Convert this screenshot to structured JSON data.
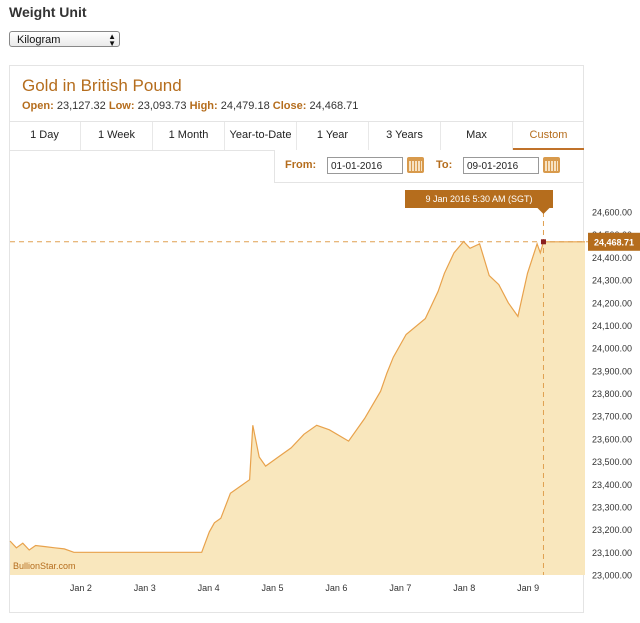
{
  "weight_unit": {
    "label": "Weight Unit",
    "selected": "Kilogram"
  },
  "header": {
    "title": "Gold in British Pound",
    "open_label": "Open:",
    "open": "23,127.32",
    "low_label": "Low:",
    "low": "23,093.73",
    "high_label": "High:",
    "high": "24,479.18",
    "close_label": "Close:",
    "close": "24,468.71"
  },
  "tabs": [
    "1 Day",
    "1 Week",
    "1 Month",
    "Year-to-Date",
    "1 Year",
    "3 Years",
    "Max",
    "Custom"
  ],
  "active_tab": "Custom",
  "range": {
    "from_label": "From:",
    "from": "01-01-2016",
    "to_label": "To:",
    "to": "09-01-2016"
  },
  "tooltip": {
    "time": "9 Jan 2016 5:30 AM (SGT)",
    "value": "24,468.71"
  },
  "watermark": "BullionStar.com",
  "colors": {
    "accent": "#b56d1d",
    "line": "#e8a24c",
    "fill": "#f9e7bd"
  },
  "chart_data": {
    "type": "area",
    "title": "Gold in British Pound",
    "xlabel": "",
    "ylabel": "",
    "x_ticks": [
      "Jan 2",
      "Jan 3",
      "Jan 4",
      "Jan 5",
      "Jan 6",
      "Jan 7",
      "Jan 8",
      "Jan 9"
    ],
    "y_ticks": [
      "23,000.00",
      "23,100.00",
      "23,200.00",
      "23,300.00",
      "23,400.00",
      "23,500.00",
      "23,600.00",
      "23,700.00",
      "23,800.00",
      "23,900.00",
      "24,000.00",
      "24,100.00",
      "24,200.00",
      "24,300.00",
      "24,400.00",
      "24,500.00",
      "24,600.00"
    ],
    "ylim": [
      23000,
      24600
    ],
    "xlim": [
      1.0,
      10.0
    ],
    "grid": false,
    "series": [
      {
        "x": [
          1.0,
          1.1,
          1.2,
          1.3,
          1.4,
          1.55,
          1.7,
          1.85,
          2.0,
          2.5,
          3.0,
          3.5,
          4.0,
          4.12,
          4.2,
          4.3,
          4.45,
          4.6,
          4.75,
          4.8,
          4.9,
          5.0,
          5.2,
          5.4,
          5.6,
          5.8,
          6.0,
          6.3,
          6.55,
          6.8,
          6.9,
          7.0,
          7.2,
          7.5,
          7.7,
          7.8,
          7.95,
          8.1,
          8.2,
          8.35,
          8.5,
          8.65,
          8.8,
          8.95,
          9.1,
          9.25,
          9.3,
          9.35,
          10.0
        ],
        "y": [
          23150,
          23120,
          23140,
          23110,
          23130,
          23125,
          23120,
          23115,
          23100,
          23100,
          23100,
          23100,
          23100,
          23190,
          23230,
          23250,
          23360,
          23390,
          23420,
          23660,
          23520,
          23480,
          23520,
          23560,
          23620,
          23660,
          23640,
          23590,
          23690,
          23810,
          23890,
          23960,
          24060,
          24130,
          24250,
          24330,
          24420,
          24470,
          24440,
          24460,
          24320,
          24280,
          24200,
          24140,
          24330,
          24460,
          24420,
          24468.71,
          24468.71
        ]
      }
    ],
    "last_value": 24468.71
  }
}
